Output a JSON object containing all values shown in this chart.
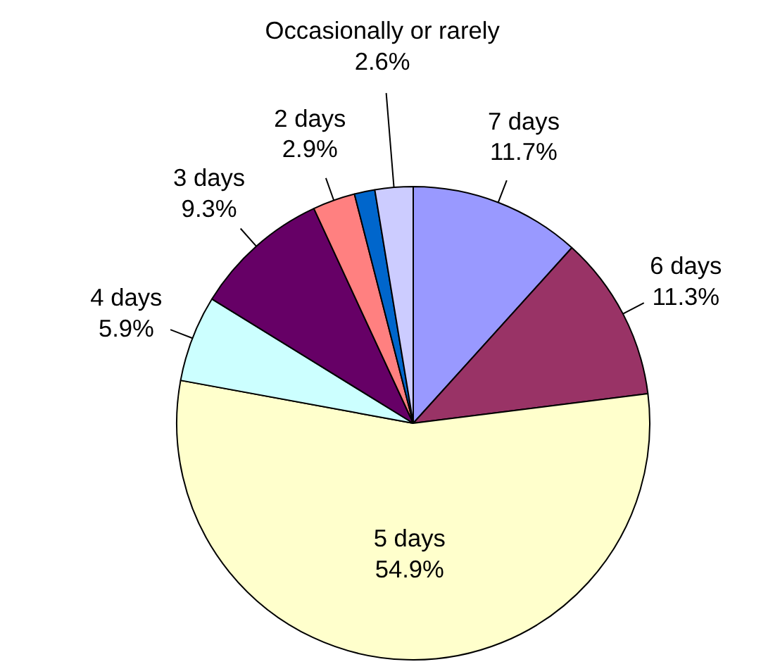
{
  "chart_data": {
    "type": "pie",
    "categories": [
      "7 days",
      "6 days",
      "5 days",
      "4 days",
      "3 days",
      "2 days",
      null,
      "Occasionally or rarely"
    ],
    "values": [
      11.7,
      11.3,
      54.9,
      5.9,
      9.3,
      2.9,
      1.4,
      2.6
    ],
    "colors": [
      "#9999ff",
      "#993366",
      "#ffffcc",
      "#ccffff",
      "#660066",
      "#ff8080",
      "#0066cc",
      "#ccccff"
    ],
    "value_labels": [
      "11.7%",
      "11.3%",
      "54.9%",
      "5.9%",
      "9.3%",
      "2.9%",
      null,
      "2.6%"
    ]
  }
}
